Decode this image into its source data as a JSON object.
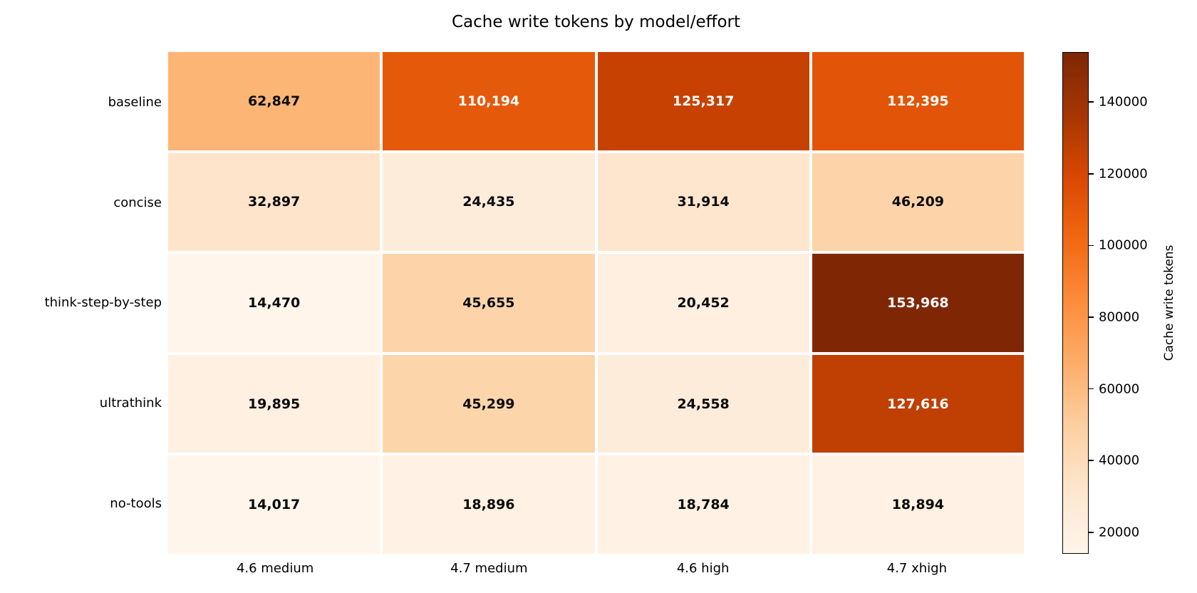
{
  "title": "Cache write tokens by model/effort",
  "chart_data": {
    "type": "heatmap",
    "title": "Cache write tokens by model/effort",
    "rows": [
      "baseline",
      "concise",
      "think-step-by-step",
      "ultrathink",
      "no-tools"
    ],
    "columns": [
      "4.6 medium",
      "4.7 medium",
      "4.6 high",
      "4.7 xhigh"
    ],
    "values": [
      [
        62847,
        110194,
        125317,
        112395
      ],
      [
        32897,
        24435,
        31914,
        46209
      ],
      [
        14470,
        45655,
        20452,
        153968
      ],
      [
        19895,
        45299,
        24558,
        127616
      ],
      [
        14017,
        18896,
        18784,
        18894
      ]
    ],
    "colorbar": {
      "label": "Cache write tokens",
      "ticks": [
        20000,
        40000,
        60000,
        80000,
        100000,
        120000,
        140000
      ],
      "vmin": 14017,
      "vmax": 153968,
      "position": "right"
    },
    "colormap": {
      "name": "Oranges",
      "stops": [
        "#fff5eb",
        "#fee6ce",
        "#fdd0a2",
        "#fdae6b",
        "#fd8d3c",
        "#f16913",
        "#d94801",
        "#a63603",
        "#7f2704"
      ]
    },
    "annotation_colors": {
      "light": "#ffffff",
      "dark": "#0a0a0a"
    },
    "grid_gap_color": "#ffffff",
    "legend_position": "right",
    "xlabel": "",
    "ylabel": ""
  }
}
